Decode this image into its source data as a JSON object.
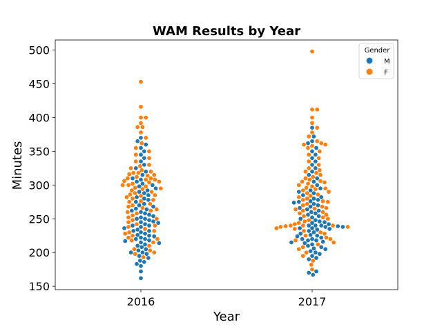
{
  "chart_data": {
    "type": "scatter",
    "subtype": "swarm",
    "title": "WAM Results by Year",
    "xlabel": "Year",
    "ylabel": "Minutes",
    "categories": [
      "2016",
      "2017"
    ],
    "ylim": [
      145,
      515
    ],
    "yticks": [
      150,
      200,
      250,
      300,
      350,
      400,
      450,
      500
    ],
    "grid": false,
    "legend": {
      "title": "Gender",
      "placement": "top-right",
      "entries": [
        {
          "label": "M",
          "color": "#1f77b4"
        },
        {
          "label": "F",
          "color": "#ff7f0e"
        }
      ]
    },
    "series": [
      {
        "name": "M",
        "color": "#1f77b4",
        "points": {
          "2016": [
            162,
            172,
            180,
            183,
            186,
            188,
            192,
            195,
            198,
            200,
            200,
            203,
            205,
            208,
            210,
            212,
            214,
            215,
            217,
            218,
            220,
            220,
            222,
            224,
            225,
            226,
            228,
            230,
            232,
            232,
            234,
            236,
            238,
            240,
            240,
            242,
            244,
            245,
            246,
            248,
            250,
            250,
            252,
            254,
            256,
            258,
            260,
            262,
            264,
            265,
            268,
            270,
            272,
            275,
            278,
            280,
            282,
            285,
            288,
            290,
            292,
            295,
            298,
            300,
            302,
            305,
            308,
            310,
            315,
            320,
            325,
            330,
            335,
            340,
            345,
            350,
            355,
            360,
            365,
            370
          ],
          "2017": [
            167,
            170,
            172,
            190,
            192,
            195,
            198,
            200,
            202,
            205,
            206,
            208,
            210,
            212,
            214,
            215,
            216,
            218,
            218,
            220,
            220,
            222,
            224,
            225,
            226,
            228,
            230,
            232,
            234,
            235,
            236,
            236,
            238,
            238,
            239,
            240,
            240,
            240,
            242,
            244,
            245,
            246,
            248,
            250,
            252,
            254,
            256,
            258,
            260,
            262,
            264,
            266,
            268,
            270,
            272,
            274,
            275,
            276,
            278,
            280,
            282,
            285,
            288,
            290,
            292,
            295,
            300,
            305,
            310,
            315,
            320,
            325,
            330,
            335,
            340,
            345,
            350,
            355,
            362,
            365,
            372,
            385
          ]
        }
      },
      {
        "name": "F",
        "color": "#ff7f0e",
        "points": {
          "2016": [
            193,
            198,
            200,
            203,
            205,
            210,
            215,
            218,
            220,
            222,
            225,
            228,
            230,
            232,
            235,
            238,
            240,
            242,
            245,
            248,
            250,
            252,
            255,
            258,
            260,
            262,
            264,
            266,
            268,
            270,
            272,
            275,
            276,
            278,
            280,
            282,
            284,
            285,
            286,
            288,
            290,
            292,
            294,
            295,
            296,
            298,
            300,
            300,
            302,
            304,
            305,
            306,
            308,
            308,
            310,
            310,
            312,
            314,
            315,
            316,
            318,
            318,
            320,
            322,
            325,
            328,
            330,
            335,
            340,
            345,
            350,
            355,
            362,
            370,
            378,
            386,
            386,
            392,
            400,
            400,
            416,
            453
          ],
          "2017": [
            175,
            182,
            188,
            195,
            200,
            205,
            208,
            212,
            215,
            218,
            220,
            222,
            225,
            228,
            230,
            232,
            235,
            236,
            238,
            238,
            239,
            240,
            240,
            240,
            242,
            244,
            246,
            248,
            250,
            252,
            254,
            256,
            258,
            260,
            262,
            264,
            265,
            266,
            268,
            270,
            272,
            275,
            276,
            278,
            280,
            282,
            284,
            286,
            288,
            290,
            292,
            294,
            295,
            296,
            298,
            300,
            302,
            304,
            305,
            306,
            308,
            310,
            312,
            315,
            318,
            320,
            322,
            325,
            330,
            335,
            340,
            345,
            350,
            355,
            358,
            360,
            360,
            362,
            365,
            372,
            378,
            385,
            392,
            400,
            412,
            412,
            498
          ]
        }
      }
    ]
  }
}
